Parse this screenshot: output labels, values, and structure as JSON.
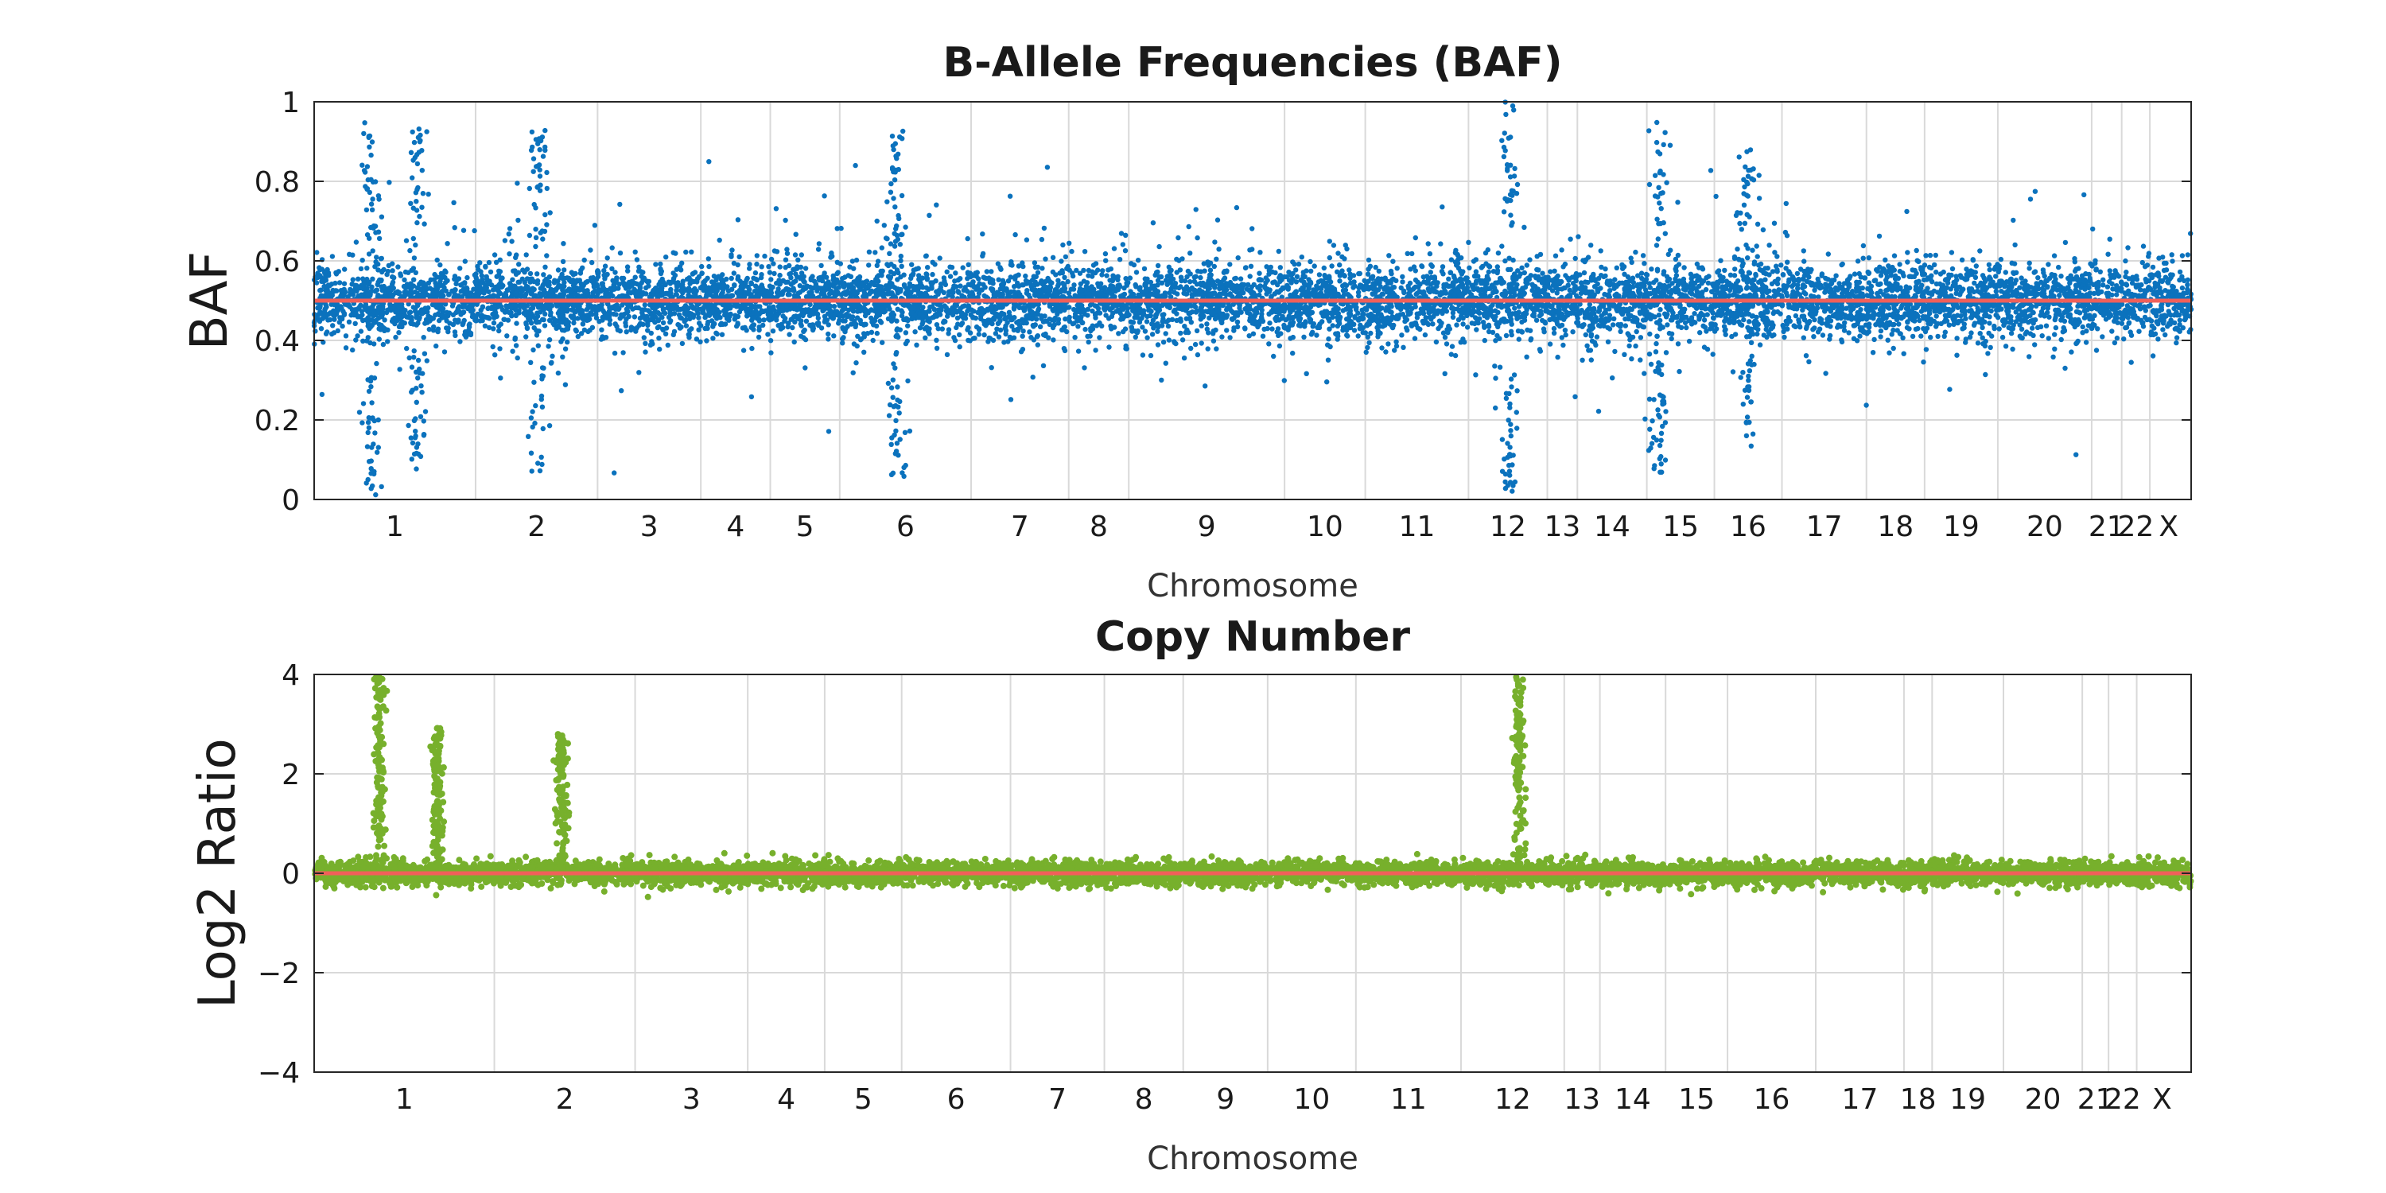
{
  "colors": {
    "baf_points": "#0b72bd",
    "cn_points": "#77b02c",
    "reference_line": "#f0605a",
    "grid": "#d9d9d9",
    "axes": "#262626",
    "background": "#ffffff"
  },
  "chart_data": [
    {
      "type": "scatter",
      "title": "B-Allele Frequencies (BAF)",
      "xlabel": "Chromosome",
      "ylabel": "BAF",
      "ylim": [
        0,
        1
      ],
      "yticks": [
        0,
        0.2,
        0.4,
        0.6,
        0.8,
        1
      ],
      "ytick_labels": [
        "0",
        "0.2",
        "0.4",
        "0.6",
        "0.8",
        "1"
      ],
      "grid": true,
      "reference_line": 0.5,
      "band": {
        "center": 0.5,
        "core_low": 0.4,
        "core_high": 0.6
      },
      "chromosome_labels": [
        "1",
        "2",
        "3",
        "4",
        "5",
        "6",
        "7",
        "8",
        "9",
        "10",
        "11",
        "12",
        "13",
        "14",
        "15",
        "16",
        "17",
        "18",
        "19",
        "20",
        "21",
        "22",
        "X"
      ],
      "chromosome_boundaries_fraction": [
        0,
        0.086,
        0.151,
        0.206,
        0.243,
        0.28,
        0.35,
        0.402,
        0.434,
        0.517,
        0.56,
        0.615,
        0.657,
        0.673,
        0.71,
        0.746,
        0.782,
        0.827,
        0.858,
        0.897,
        0.947,
        0.963,
        0.978,
        0.998
      ],
      "notable_regions": [
        {
          "chromosome": "1",
          "position_fraction": 0.03,
          "baf": [
            0.0,
            0.97
          ]
        },
        {
          "chromosome": "1",
          "position_fraction": 0.055,
          "baf": [
            0.05,
            0.95
          ]
        },
        {
          "chromosome": "2",
          "position_fraction": 0.12,
          "baf": [
            0.07,
            0.93
          ]
        },
        {
          "chromosome": "12",
          "position_fraction": 0.637,
          "baf": [
            0.0,
            1.0
          ]
        },
        {
          "chromosome": "14",
          "position_fraction": 0.716,
          "baf": [
            0.05,
            0.95
          ]
        },
        {
          "chromosome": "16",
          "position_fraction": 0.764,
          "baf": [
            0.12,
            0.88
          ]
        },
        {
          "chromosome": "6",
          "position_fraction": 0.31,
          "baf": [
            0.05,
            0.95
          ]
        }
      ]
    },
    {
      "type": "scatter",
      "title": "Copy Number",
      "xlabel": "Chromosome",
      "ylabel": "Log2 Ratio",
      "ylim": [
        -4,
        4
      ],
      "yticks": [
        -4,
        -2,
        0,
        2,
        4
      ],
      "ytick_labels": [
        "−4",
        "−2",
        "0",
        "2",
        "4"
      ],
      "grid": true,
      "reference_line": 0,
      "baseline_band": {
        "low": -0.35,
        "high": 0.3
      },
      "chromosome_labels": [
        "1",
        "2",
        "3",
        "4",
        "5",
        "6",
        "7",
        "8",
        "9",
        "10",
        "11",
        "12",
        "13",
        "14",
        "15",
        "16",
        "17",
        "18",
        "19",
        "20",
        "21",
        "22",
        "X"
      ],
      "chromosome_boundaries_fraction": [
        0,
        0.096,
        0.171,
        0.231,
        0.272,
        0.313,
        0.371,
        0.421,
        0.463,
        0.508,
        0.555,
        0.611,
        0.666,
        0.685,
        0.72,
        0.753,
        0.8,
        0.847,
        0.862,
        0.9,
        0.942,
        0.956,
        0.971,
        0.998
      ],
      "amplifications": [
        {
          "chromosome": "1",
          "position_fraction": 0.035,
          "log2_ratio": 4.0
        },
        {
          "chromosome": "1",
          "position_fraction": 0.066,
          "log2_ratio": 3.0
        },
        {
          "chromosome": "2",
          "position_fraction": 0.132,
          "log2_ratio": 2.8
        },
        {
          "chromosome": "12",
          "position_fraction": 0.642,
          "log2_ratio": 4.0
        }
      ]
    }
  ]
}
